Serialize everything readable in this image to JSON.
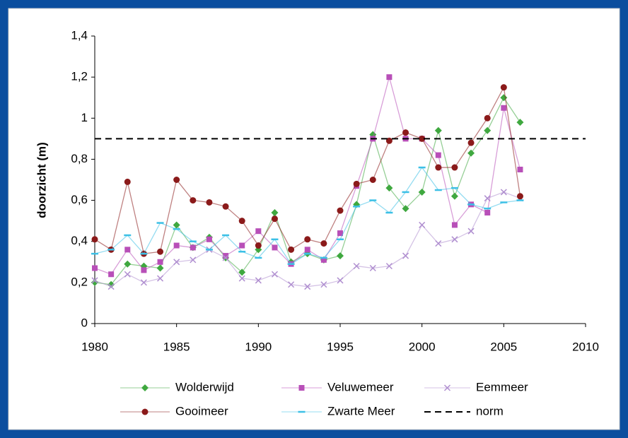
{
  "chart_data": {
    "type": "line",
    "y_label": "doorzicht (m)",
    "x": [
      1980,
      1981,
      1982,
      1983,
      1984,
      1985,
      1986,
      1987,
      1988,
      1989,
      1990,
      1991,
      1992,
      1993,
      1994,
      1995,
      1996,
      1997,
      1998,
      1999,
      2000,
      2001,
      2002,
      2003,
      2004,
      2005,
      2006
    ],
    "xlim": [
      1980,
      2010
    ],
    "xticks": [
      1980,
      1985,
      1990,
      1995,
      2000,
      2005,
      2010
    ],
    "ylim": [
      0,
      1.4
    ],
    "yticks": [
      0,
      {
        "value": 0.2,
        "label": "0,2"
      },
      {
        "value": 0.4,
        "label": "0,4"
      },
      {
        "value": 0.6,
        "label": "0,6"
      },
      {
        "value": 0.8,
        "label": "0,8"
      },
      1,
      {
        "value": 1.2,
        "label": "1,2"
      },
      {
        "value": 1.4,
        "label": "1,4"
      }
    ],
    "series": [
      {
        "name": "Wolderwijd",
        "color": "#3fa83f",
        "marker": "diamond",
        "values": [
          0.2,
          0.19,
          0.29,
          0.28,
          0.27,
          0.48,
          0.37,
          0.42,
          0.32,
          0.25,
          0.36,
          0.54,
          0.3,
          0.34,
          0.31,
          0.33,
          0.58,
          0.92,
          0.66,
          0.56,
          0.64,
          0.94,
          0.62,
          0.83,
          0.94,
          1.1,
          0.98
        ]
      },
      {
        "name": "Veluwemeer",
        "color": "#b84fb8",
        "marker": "square",
        "values": [
          0.27,
          0.24,
          0.36,
          0.26,
          0.3,
          0.38,
          0.37,
          0.41,
          0.33,
          0.38,
          0.45,
          0.37,
          0.29,
          0.36,
          0.31,
          0.44,
          0.67,
          0.9,
          1.2,
          0.9,
          0.9,
          0.82,
          0.48,
          0.58,
          0.54,
          1.05,
          0.75
        ]
      },
      {
        "name": "Eemmeer",
        "color": "#b08fd0",
        "marker": "cross",
        "values": [
          0.21,
          0.18,
          0.24,
          0.2,
          0.22,
          0.3,
          0.31,
          0.36,
          0.32,
          0.22,
          0.21,
          0.24,
          0.19,
          0.18,
          0.19,
          0.21,
          0.28,
          0.27,
          0.28,
          0.33,
          0.48,
          0.39,
          0.41,
          0.45,
          0.61,
          0.64,
          0.61
        ]
      },
      {
        "name": "Gooimeer",
        "color": "#8b1a1a",
        "marker": "circle",
        "values": [
          0.41,
          0.36,
          0.69,
          0.34,
          0.35,
          0.7,
          0.6,
          0.59,
          0.57,
          0.5,
          0.38,
          0.51,
          0.36,
          0.41,
          0.39,
          0.55,
          0.68,
          0.7,
          0.89,
          0.93,
          0.9,
          0.76,
          0.76,
          0.88,
          1.0,
          1.15,
          0.62
        ]
      },
      {
        "name": "Zwarte Meer",
        "color": "#3cc0e6",
        "marker": "dash",
        "values": [
          0.34,
          0.36,
          0.43,
          0.34,
          0.49,
          0.46,
          0.4,
          0.36,
          0.43,
          0.35,
          0.32,
          0.41,
          0.29,
          0.34,
          0.32,
          0.41,
          0.57,
          0.6,
          0.54,
          0.64,
          0.76,
          0.65,
          0.66,
          0.58,
          0.56,
          0.59,
          0.6
        ]
      }
    ],
    "norm": {
      "name": "norm",
      "value": 0.9,
      "color": "#000000"
    }
  }
}
